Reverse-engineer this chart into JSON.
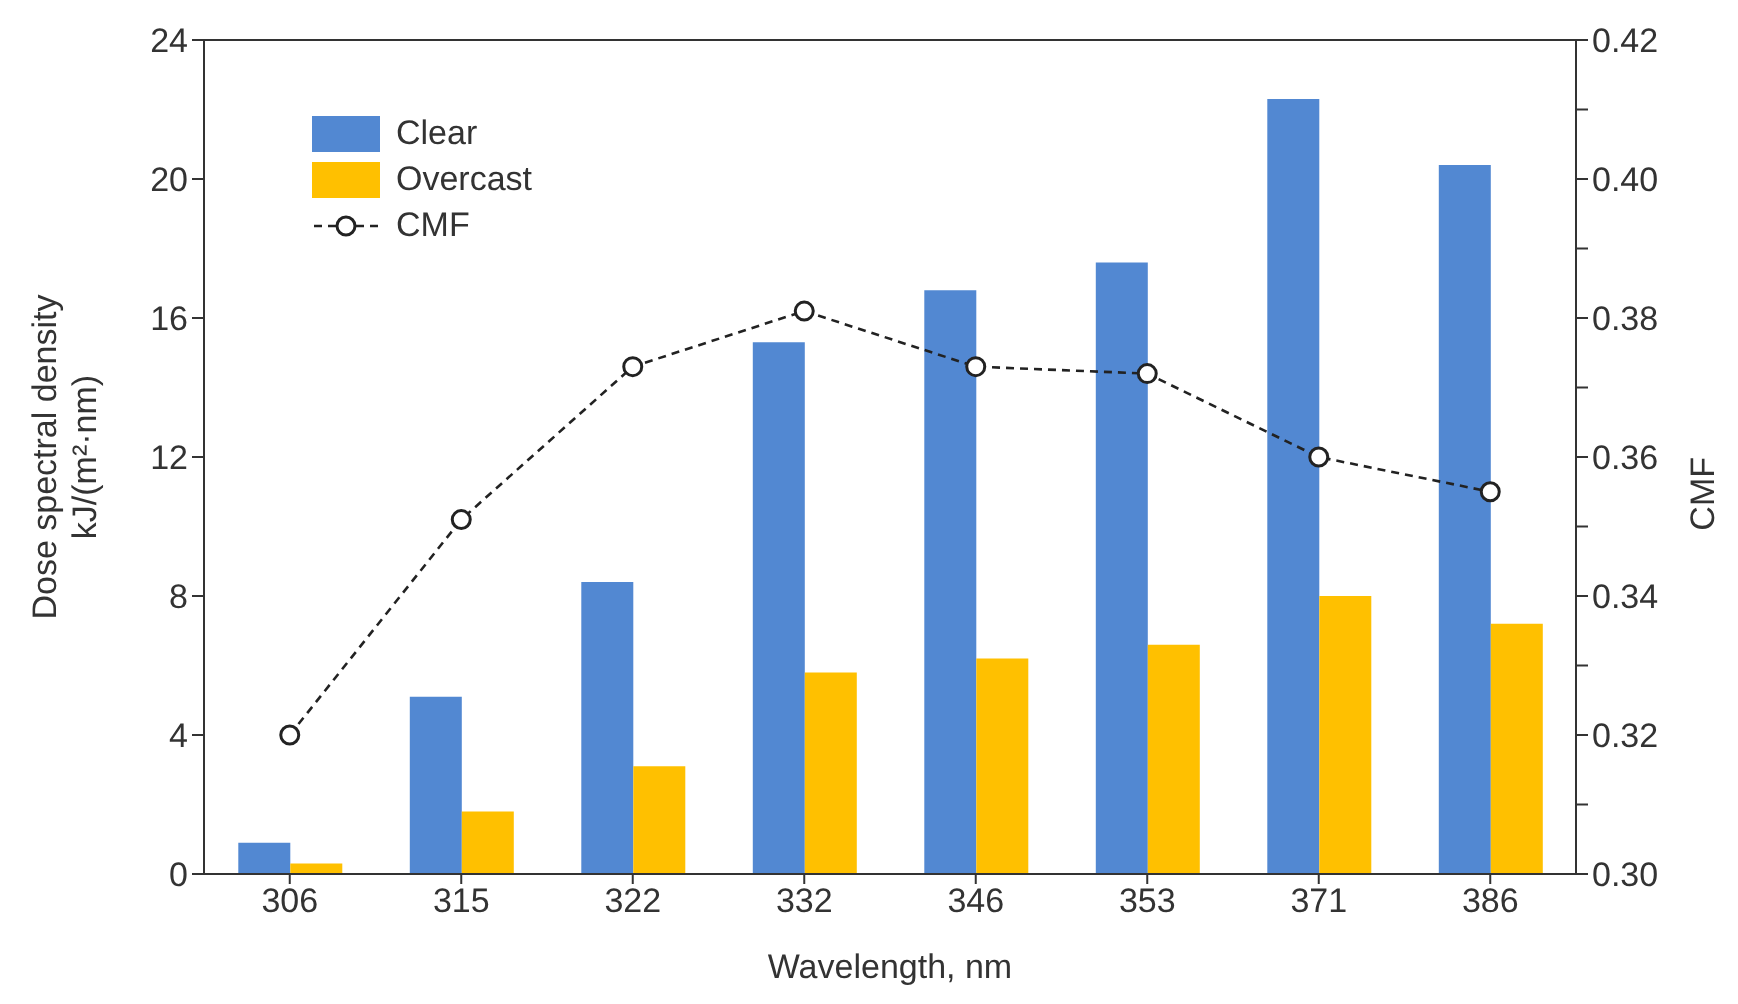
{
  "chart_data": {
    "type": "bar",
    "xlabel": "Wavelength, nm",
    "ylabel": "Dose spectral density\nkJ/(m²·nm)",
    "y2label": "CMF",
    "categories": [
      "306",
      "315",
      "322",
      "332",
      "346",
      "353",
      "371",
      "386"
    ],
    "series": [
      {
        "name": "Clear",
        "color": "#5288d2",
        "values": [
          0.9,
          5.1,
          8.4,
          15.3,
          16.8,
          17.6,
          22.3,
          20.4
        ]
      },
      {
        "name": "Overcast",
        "color": "#ffc000",
        "values": [
          0.3,
          1.8,
          3.1,
          5.8,
          6.2,
          6.6,
          8.0,
          7.2
        ]
      },
      {
        "name": "CMF",
        "type": "line",
        "axis": "y2",
        "color": "#222222",
        "marker": "circle",
        "line_style": "dashed",
        "values": [
          0.32,
          0.351,
          0.373,
          0.381,
          0.373,
          0.372,
          0.36,
          0.355
        ]
      }
    ],
    "ylim": [
      0,
      24
    ],
    "yticks": [
      0,
      4,
      8,
      12,
      16,
      20,
      24
    ],
    "y2lim": [
      0.3,
      0.42
    ],
    "y2ticks": [
      {
        "value": 0.3,
        "label": "0.30"
      },
      {
        "value": 0.31,
        "label": null
      },
      {
        "value": 0.32,
        "label": "0.32"
      },
      {
        "value": 0.33,
        "label": null
      },
      {
        "value": 0.34,
        "label": "0.34"
      },
      {
        "value": 0.35,
        "label": null
      },
      {
        "value": 0.36,
        "label": "0.36"
      },
      {
        "value": 0.37,
        "label": null
      },
      {
        "value": 0.38,
        "label": "0.38"
      },
      {
        "value": 0.39,
        "label": null
      },
      {
        "value": 0.4,
        "label": "0.40"
      },
      {
        "value": 0.41,
        "label": null
      },
      {
        "value": 0.42,
        "label": "0.42"
      }
    ],
    "grid": false,
    "legend": "top left"
  }
}
